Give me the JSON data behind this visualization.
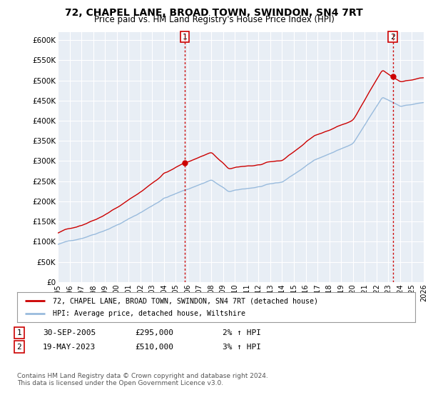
{
  "title": "72, CHAPEL LANE, BROAD TOWN, SWINDON, SN4 7RT",
  "subtitle": "Price paid vs. HM Land Registry's House Price Index (HPI)",
  "ylabel_ticks": [
    "£0",
    "£50K",
    "£100K",
    "£150K",
    "£200K",
    "£250K",
    "£300K",
    "£350K",
    "£400K",
    "£450K",
    "£500K",
    "£550K",
    "£600K"
  ],
  "ylim": [
    0,
    620000
  ],
  "ytick_vals": [
    0,
    50000,
    100000,
    150000,
    200000,
    250000,
    300000,
    350000,
    400000,
    450000,
    500000,
    550000,
    600000
  ],
  "sale1_date": 2005.75,
  "sale1_price": 295000,
  "sale2_date": 2023.38,
  "sale2_price": 510000,
  "hpi_color": "#99bbdd",
  "price_color": "#cc0000",
  "sale_dot_color": "#cc0000",
  "vline_color": "#cc0000",
  "plot_bg": "#e8eef5",
  "grid_color": "#ffffff",
  "legend_label1": "72, CHAPEL LANE, BROAD TOWN, SWINDON, SN4 7RT (detached house)",
  "legend_label2": "HPI: Average price, detached house, Wiltshire",
  "note1_num": "1",
  "note1_date": "30-SEP-2005",
  "note1_price": "£295,000",
  "note1_hpi": "2% ↑ HPI",
  "note2_num": "2",
  "note2_date": "19-MAY-2023",
  "note2_price": "£510,000",
  "note2_hpi": "3% ↑ HPI",
  "footnote": "Contains HM Land Registry data © Crown copyright and database right 2024.\nThis data is licensed under the Open Government Licence v3.0.",
  "x_start": 1995,
  "x_end": 2026,
  "xtick_years": [
    1995,
    1996,
    1997,
    1998,
    1999,
    2000,
    2001,
    2002,
    2003,
    2004,
    2005,
    2006,
    2007,
    2008,
    2009,
    2010,
    2011,
    2012,
    2013,
    2014,
    2015,
    2016,
    2017,
    2018,
    2019,
    2020,
    2021,
    2022,
    2023,
    2024,
    2025,
    2026
  ]
}
